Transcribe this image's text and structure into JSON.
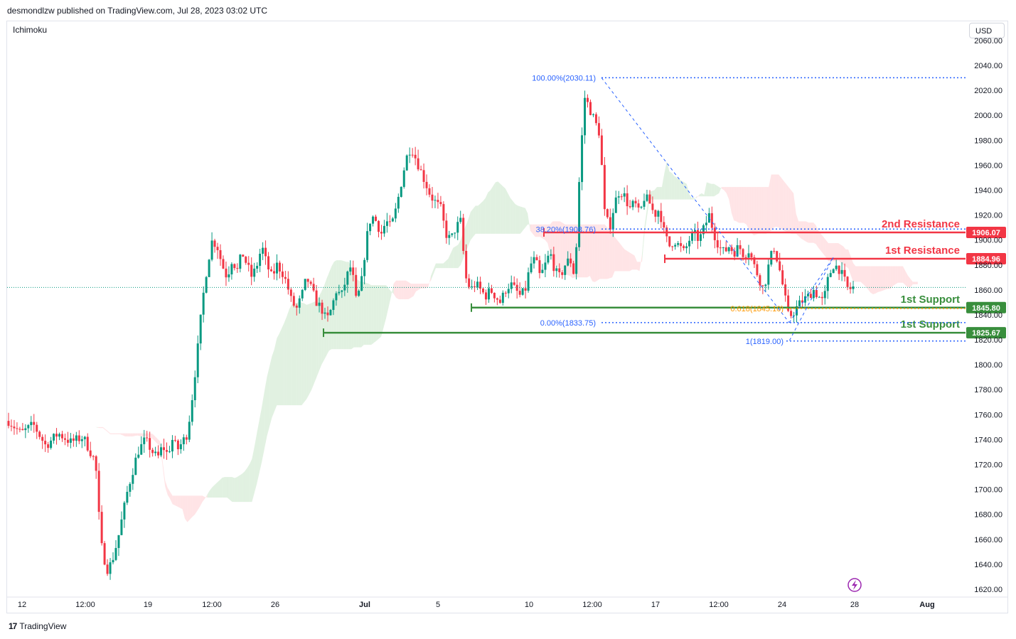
{
  "header": {
    "published": "desmondlzw published on TradingView.com, Jul 28, 2023 03:02 UTC"
  },
  "indicator": {
    "name": "Ichimoku"
  },
  "currency": {
    "label": "USD"
  },
  "footer": {
    "brand": "TradingView",
    "logo": "17"
  },
  "colors": {
    "up": "#089981",
    "down": "#f23645",
    "resistance": "#f23645",
    "support": "#388e3c",
    "fib_blue": "#2962ff",
    "fib_orange": "#ff9800",
    "cloud_green": "#c8e6c9",
    "cloud_red": "#ffcdd2"
  },
  "chart_data": {
    "type": "candlestick",
    "symbol_timeframe": "",
    "x_ticks": [
      "12",
      "12:00",
      "19",
      "12:00",
      "26",
      "Jul",
      "5",
      "10",
      "12:00",
      "17",
      "12:00",
      "24",
      "28",
      "Aug"
    ],
    "y_ticks": [
      1620,
      1640,
      1660,
      1680,
      1700,
      1720,
      1740,
      1760,
      1780,
      1800,
      1820,
      1840,
      1860,
      1880,
      1900,
      1920,
      1940,
      1960,
      1980,
      2000,
      2020,
      2040,
      2060
    ],
    "ylim": [
      1614,
      2062
    ],
    "current_price": 1862,
    "levels": [
      {
        "name": "2nd Resistance",
        "value": 1906.07,
        "label": "1906.07",
        "kind": "resistance"
      },
      {
        "name": "1st Resistance",
        "value": 1884.96,
        "label": "1884.96",
        "kind": "resistance"
      },
      {
        "name": "1st Support",
        "value": 1845.8,
        "label": "1845.80",
        "kind": "support"
      },
      {
        "name": "1st Support",
        "value": 1825.67,
        "label": "1825.67",
        "kind": "support"
      }
    ],
    "fibonacci": [
      {
        "label": "100.00%(2030.11)",
        "value": 2030.11
      },
      {
        "label": "38.20%(1908.76)",
        "value": 1908.76
      },
      {
        "label": "0.00%(1833.75)",
        "value": 1833.75
      },
      {
        "label": "0.618(1845.10)",
        "value": 1845.1
      },
      {
        "label": "1(1819.00)",
        "value": 1819.0
      }
    ],
    "price_path": [
      [
        0,
        1755
      ],
      [
        5,
        1745
      ],
      [
        10,
        1752
      ],
      [
        15,
        1735
      ],
      [
        20,
        1745
      ],
      [
        25,
        1738
      ],
      [
        30,
        1742
      ],
      [
        35,
        1722
      ],
      [
        37,
        1660
      ],
      [
        38,
        1648
      ],
      [
        40,
        1635
      ],
      [
        42,
        1645
      ],
      [
        44,
        1660
      ],
      [
        46,
        1680
      ],
      [
        48,
        1700
      ],
      [
        50,
        1715
      ],
      [
        52,
        1730
      ],
      [
        55,
        1740
      ],
      [
        58,
        1730
      ],
      [
        60,
        1725
      ],
      [
        62,
        1735
      ],
      [
        64,
        1728
      ],
      [
        66,
        1740
      ],
      [
        68,
        1732
      ],
      [
        70,
        1738
      ],
      [
        72,
        1745
      ],
      [
        74,
        1775
      ],
      [
        76,
        1810
      ],
      [
        78,
        1850
      ],
      [
        80,
        1880
      ],
      [
        82,
        1900
      ],
      [
        84,
        1895
      ],
      [
        86,
        1880
      ],
      [
        88,
        1870
      ],
      [
        90,
        1885
      ],
      [
        92,
        1875
      ],
      [
        94,
        1890
      ],
      [
        96,
        1880
      ],
      [
        98,
        1870
      ],
      [
        100,
        1880
      ],
      [
        102,
        1895
      ],
      [
        104,
        1880
      ],
      [
        106,
        1870
      ],
      [
        108,
        1880
      ],
      [
        110,
        1875
      ],
      [
        112,
        1865
      ],
      [
        114,
        1850
      ],
      [
        116,
        1845
      ],
      [
        118,
        1855
      ],
      [
        120,
        1870
      ],
      [
        122,
        1860
      ],
      [
        124,
        1850
      ],
      [
        126,
        1845
      ],
      [
        128,
        1835
      ],
      [
        130,
        1845
      ],
      [
        132,
        1860
      ],
      [
        134,
        1855
      ],
      [
        136,
        1870
      ],
      [
        138,
        1880
      ],
      [
        140,
        1850
      ],
      [
        142,
        1865
      ],
      [
        144,
        1900
      ],
      [
        146,
        1920
      ],
      [
        148,
        1915
      ],
      [
        150,
        1905
      ],
      [
        152,
        1915
      ],
      [
        154,
        1910
      ],
      [
        156,
        1925
      ],
      [
        158,
        1945
      ],
      [
        160,
        1965
      ],
      [
        162,
        1975
      ],
      [
        164,
        1965
      ],
      [
        166,
        1955
      ],
      [
        168,
        1945
      ],
      [
        170,
        1935
      ],
      [
        172,
        1930
      ],
      [
        174,
        1925
      ],
      [
        176,
        1905
      ],
      [
        178,
        1900
      ],
      [
        180,
        1910
      ],
      [
        182,
        1915
      ],
      [
        184,
        1870
      ],
      [
        186,
        1860
      ],
      [
        188,
        1865
      ],
      [
        190,
        1860
      ],
      [
        192,
        1855
      ],
      [
        194,
        1860
      ],
      [
        196,
        1855
      ],
      [
        198,
        1850
      ],
      [
        200,
        1860
      ],
      [
        202,
        1865
      ],
      [
        204,
        1860
      ],
      [
        206,
        1855
      ],
      [
        208,
        1860
      ],
      [
        210,
        1880
      ],
      [
        212,
        1885
      ],
      [
        214,
        1870
      ],
      [
        216,
        1880
      ],
      [
        218,
        1890
      ],
      [
        220,
        1875
      ],
      [
        222,
        1870
      ],
      [
        224,
        1880
      ],
      [
        226,
        1885
      ],
      [
        228,
        1870
      ],
      [
        230,
        1960
      ],
      [
        232,
        2015
      ],
      [
        234,
        2005
      ],
      [
        236,
        1995
      ],
      [
        238,
        1985
      ],
      [
        240,
        1920
      ],
      [
        242,
        1910
      ],
      [
        244,
        1930
      ],
      [
        246,
        1940
      ],
      [
        248,
        1935
      ],
      [
        250,
        1925
      ],
      [
        252,
        1930
      ],
      [
        254,
        1920
      ],
      [
        256,
        1935
      ],
      [
        258,
        1930
      ],
      [
        260,
        1920
      ],
      [
        262,
        1925
      ],
      [
        264,
        1905
      ],
      [
        266,
        1895
      ],
      [
        268,
        1900
      ],
      [
        270,
        1895
      ],
      [
        272,
        1890
      ],
      [
        274,
        1900
      ],
      [
        276,
        1905
      ],
      [
        278,
        1900
      ],
      [
        280,
        1910
      ],
      [
        282,
        1920
      ],
      [
        284,
        1905
      ],
      [
        286,
        1895
      ],
      [
        288,
        1890
      ],
      [
        290,
        1895
      ],
      [
        292,
        1890
      ],
      [
        294,
        1895
      ],
      [
        296,
        1888
      ],
      [
        298,
        1892
      ],
      [
        300,
        1880
      ],
      [
        302,
        1870
      ],
      [
        304,
        1860
      ],
      [
        306,
        1880
      ],
      [
        308,
        1895
      ],
      [
        310,
        1880
      ],
      [
        312,
        1860
      ],
      [
        314,
        1838
      ],
      [
        316,
        1842
      ],
      [
        318,
        1848
      ],
      [
        320,
        1852
      ],
      [
        322,
        1855
      ],
      [
        324,
        1860
      ],
      [
        326,
        1855
      ],
      [
        328,
        1850
      ],
      [
        330,
        1870
      ],
      [
        332,
        1880
      ],
      [
        334,
        1878
      ],
      [
        336,
        1870
      ],
      [
        338,
        1860
      ],
      [
        340,
        1862
      ]
    ]
  }
}
